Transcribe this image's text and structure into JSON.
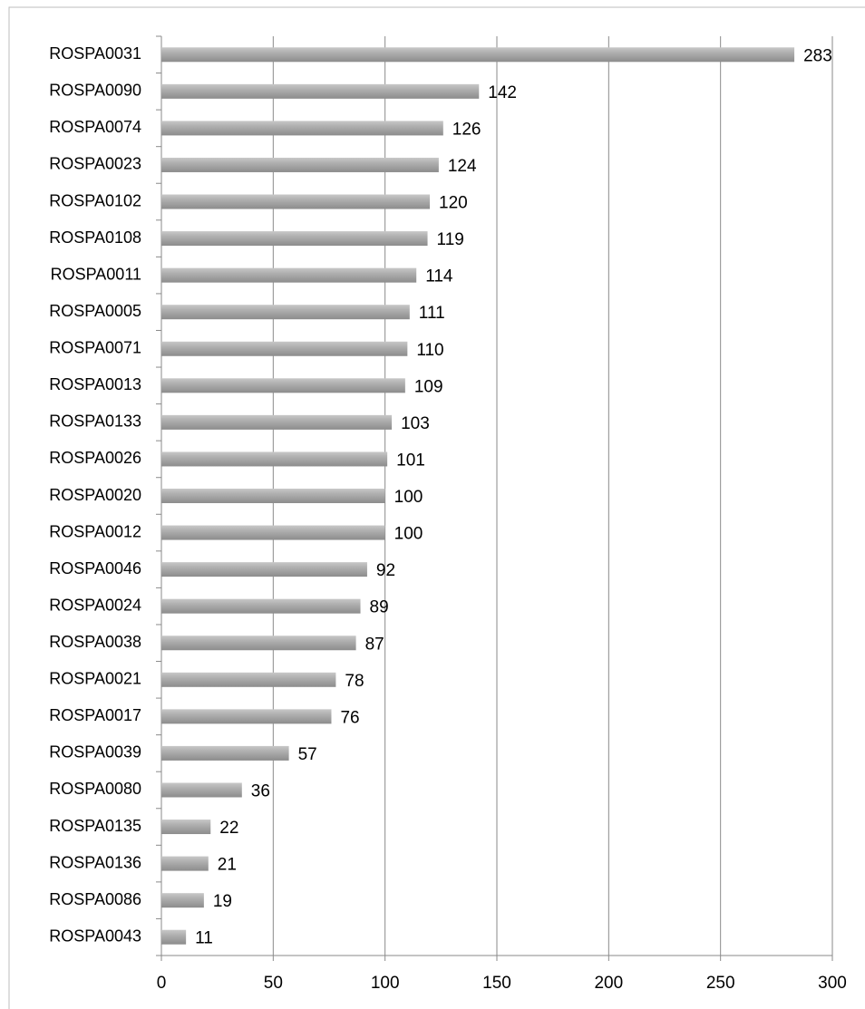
{
  "chart_data": {
    "type": "bar",
    "orientation": "horizontal",
    "categories": [
      "ROSPA0031",
      "ROSPA0090",
      "ROSPA0074",
      "ROSPA0023",
      "ROSPA0102",
      "ROSPA0108",
      "ROSPA0011",
      "ROSPA0005",
      "ROSPA0071",
      "ROSPA0013",
      "ROSPA0133",
      "ROSPA0026",
      "ROSPA0020",
      "ROSPA0012",
      "ROSPA0046",
      "ROSPA0024",
      "ROSPA0038",
      "ROSPA0021",
      "ROSPA0017",
      "ROSPA0039",
      "ROSPA0080",
      "ROSPA0135",
      "ROSPA0136",
      "ROSPA0086",
      "ROSPA0043"
    ],
    "values": [
      283,
      142,
      126,
      124,
      120,
      119,
      114,
      111,
      110,
      109,
      103,
      101,
      100,
      100,
      92,
      89,
      87,
      78,
      76,
      57,
      36,
      22,
      21,
      19,
      11
    ],
    "color": "#a6a6a6",
    "xlim": [
      0,
      300
    ],
    "xticks": [
      0,
      50,
      100,
      150,
      200,
      250,
      300
    ],
    "grid": true
  }
}
